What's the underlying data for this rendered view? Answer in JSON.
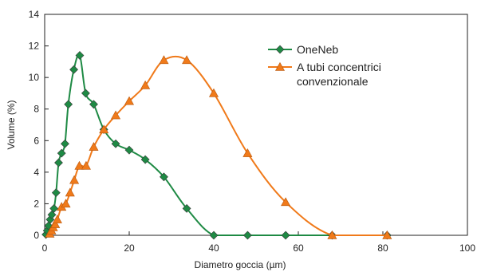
{
  "chart_data": {
    "type": "line",
    "xlabel": "Diametro goccia (µm)",
    "ylabel": "Volume (%)",
    "xlim": [
      0,
      100
    ],
    "ylim": [
      0,
      14
    ],
    "xticks": [
      "0",
      "20",
      "40",
      "60",
      "80",
      "100"
    ],
    "yticks": [
      "0",
      "2",
      "4",
      "6",
      "8",
      "10",
      "12",
      "14"
    ],
    "xtick_values": [
      0,
      20,
      40,
      60,
      80,
      100
    ],
    "ytick_values": [
      0,
      2,
      4,
      6,
      8,
      10,
      12,
      14
    ],
    "grid": false,
    "legend_position": "top-right",
    "series": [
      {
        "name": "OneNeb",
        "color": "#1e8a44",
        "marker": "diamond",
        "points": [
          [
            0.3,
            0.05
          ],
          [
            0.6,
            0.3
          ],
          [
            0.9,
            0.6
          ],
          [
            1.3,
            1.0
          ],
          [
            1.7,
            1.3
          ],
          [
            2.2,
            1.7
          ],
          [
            2.7,
            2.7
          ],
          [
            3.3,
            4.6
          ],
          [
            4.0,
            5.2
          ],
          [
            4.8,
            5.8
          ],
          [
            5.6,
            8.3
          ],
          [
            6.9,
            10.5
          ],
          [
            8.3,
            11.4
          ],
          [
            9.7,
            9.0
          ],
          [
            11.6,
            8.3
          ],
          [
            14.0,
            6.7
          ],
          [
            16.8,
            5.8
          ],
          [
            20.0,
            5.4
          ],
          [
            23.8,
            4.8
          ],
          [
            28.2,
            3.7
          ],
          [
            33.6,
            1.7
          ],
          [
            40.0,
            0.0
          ],
          [
            48.0,
            0.0
          ],
          [
            57.0,
            0.0
          ],
          [
            68.0,
            0.0
          ],
          [
            81.0,
            0.0
          ]
        ]
      },
      {
        "name": "A tubi concentrici convenzionale",
        "color": "#f07a1a",
        "marker": "triangle",
        "points": [
          [
            1.2,
            0.1
          ],
          [
            1.6,
            0.3
          ],
          [
            2.0,
            0.5
          ],
          [
            2.5,
            0.7
          ],
          [
            3.0,
            1.0
          ],
          [
            4.0,
            1.8
          ],
          [
            5.0,
            2.0
          ],
          [
            6.0,
            2.7
          ],
          [
            7.0,
            3.5
          ],
          [
            8.2,
            4.4
          ],
          [
            9.8,
            4.4
          ],
          [
            11.6,
            5.6
          ],
          [
            14.0,
            6.7
          ],
          [
            16.8,
            7.6
          ],
          [
            20.0,
            8.5
          ],
          [
            23.8,
            9.5
          ],
          [
            28.2,
            11.1
          ],
          [
            33.6,
            11.1
          ],
          [
            40.0,
            9.0
          ],
          [
            48.0,
            5.2
          ],
          [
            57.0,
            2.1
          ],
          [
            68.0,
            0.0
          ],
          [
            81.0,
            0.0
          ]
        ]
      }
    ]
  },
  "legend": {
    "items": [
      {
        "lines": [
          "OneNeb"
        ]
      },
      {
        "lines": [
          "A tubi concentrici",
          "convenzionale"
        ]
      }
    ]
  }
}
